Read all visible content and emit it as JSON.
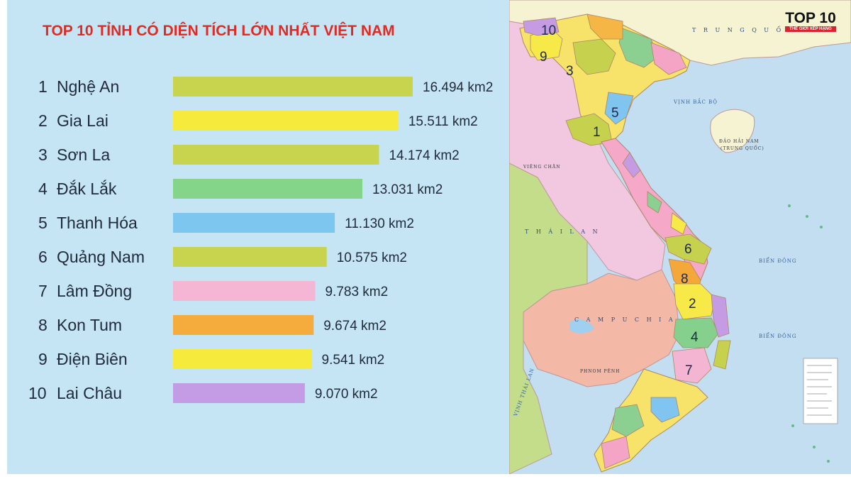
{
  "chart_data": {
    "type": "bar",
    "title": "TOP 10 TỈNH CÓ DIỆN TÍCH LỚN NHẤT VIỆT NAM",
    "title_color": "#e02a24",
    "ranks": [
      "1",
      "2",
      "3",
      "4",
      "5",
      "6",
      "7",
      "8",
      "9",
      "10"
    ],
    "categories": [
      "Nghệ An",
      "Gia Lai",
      "Sơn La",
      "Đắk Lắk",
      "Thanh Hóa",
      "Quảng Nam",
      "Lâm Đồng",
      "Kon Tum",
      "Điện Biên",
      "Lai Châu"
    ],
    "values": [
      16494,
      15511,
      14174,
      13031,
      11130,
      10575,
      9783,
      9674,
      9541,
      9070
    ],
    "value_labels": [
      "16.494 km2",
      "15.511 km2",
      "14.174 km2",
      "13.031 km2",
      "11.130 km2",
      "10.575 km2",
      "9.783 km2",
      "9.674 km2",
      "9.541 km2",
      "9.070 km2"
    ],
    "bar_colors": [
      "#c9d44e",
      "#f6ea3c",
      "#c9d44e",
      "#84d48a",
      "#7cc6f0",
      "#c9d44e",
      "#f4b6d3",
      "#f5ac3c",
      "#f6ea3c",
      "#c49ce6"
    ],
    "unit": "km2",
    "xlim": [
      0,
      16494
    ]
  },
  "map": {
    "numbers": [
      "1",
      "2",
      "3",
      "4",
      "5",
      "6",
      "7",
      "8",
      "9",
      "10"
    ],
    "labels": {
      "trung_quoc": "T R U N G   Q U Ố",
      "thai_lan": "T H Á I   L A N",
      "campuchia": "C A M P U C H I A",
      "vinh_bac_bo": "VỊNH  BẮC  BỘ",
      "dao_hai_nam": "ĐẢO HẢI NAM",
      "trung_quoc_small": "(TRUNG QUỐC)",
      "bien_dong_1": "BIỂN  ĐÔNG",
      "bien_dong_2": "BIỂN  ĐÔNG",
      "vieng_chan": "VIÊNG CHĂN",
      "phnom_penh": "PHNOM PÊNH",
      "vinh_thai_lan": "VỊNH THÁI LAN"
    }
  },
  "logo": {
    "title": "TOP 10",
    "subtitle": "THẾ GIỚI XẾP HẠNG"
  }
}
